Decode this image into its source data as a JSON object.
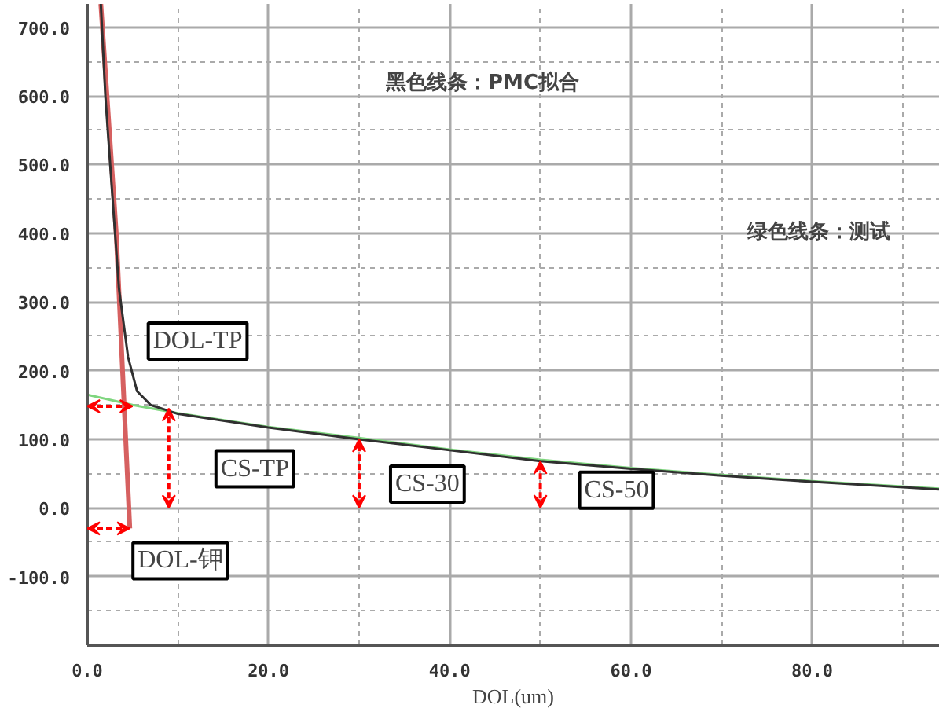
{
  "chart_data": {
    "type": "line",
    "xlabel": "DOL(um)",
    "xlim": [
      0,
      94
    ],
    "ylim": [
      -200,
      734
    ],
    "xticks": [
      {
        "value": 0,
        "label": "0.0"
      },
      {
        "value": 20,
        "label": "20.0"
      },
      {
        "value": 40,
        "label": "40.0"
      },
      {
        "value": 60,
        "label": "60.0"
      },
      {
        "value": 80,
        "label": "80.0"
      }
    ],
    "yticks": [
      {
        "value": -100,
        "label": "-100.0"
      },
      {
        "value": 0,
        "label": "0.0"
      },
      {
        "value": 100,
        "label": "100.0"
      },
      {
        "value": 200,
        "label": "200.0"
      },
      {
        "value": 300,
        "label": "300.0"
      },
      {
        "value": 400,
        "label": "400.0"
      },
      {
        "value": 500,
        "label": "500.0"
      },
      {
        "value": 600,
        "label": "600.0"
      },
      {
        "value": 700,
        "label": "700.0"
      }
    ],
    "grid": true,
    "series": [
      {
        "color": "#7fd67f",
        "x": [
          0,
          5,
          10,
          20,
          30,
          40,
          50,
          60,
          70,
          80,
          94
        ],
        "values": [
          165,
          150,
          138,
          118,
          102,
          85,
          70,
          58,
          48,
          39,
          28
        ]
      },
      {
        "color": "#d66060",
        "x": [
          1.5,
          3.2,
          4.7
        ],
        "values": [
          734,
          400,
          -30
        ]
      },
      {
        "color": "#303030",
        "x": [
          1.5,
          2,
          2.8,
          3.5,
          4.5,
          5.5,
          7,
          10,
          20,
          30,
          40,
          50,
          60,
          70,
          80,
          94
        ],
        "values": [
          734,
          600,
          450,
          320,
          220,
          170,
          150,
          137,
          117,
          100,
          84,
          68,
          57,
          47,
          38,
          27
        ]
      }
    ],
    "annotations": [
      {
        "text": "DOL-TP",
        "x": 5,
        "y": 148
      },
      {
        "text": "CS-TP",
        "x": 9,
        "y": 145
      },
      {
        "text": "CS-30",
        "x": 30,
        "y": 100
      },
      {
        "text": "CS-50",
        "x": 50,
        "y": 68
      },
      {
        "text": "DOL-钾",
        "x": 4.7,
        "y": -30
      },
      "黑色线条：PMC拟合",
      "绿色线条：测试"
    ]
  }
}
